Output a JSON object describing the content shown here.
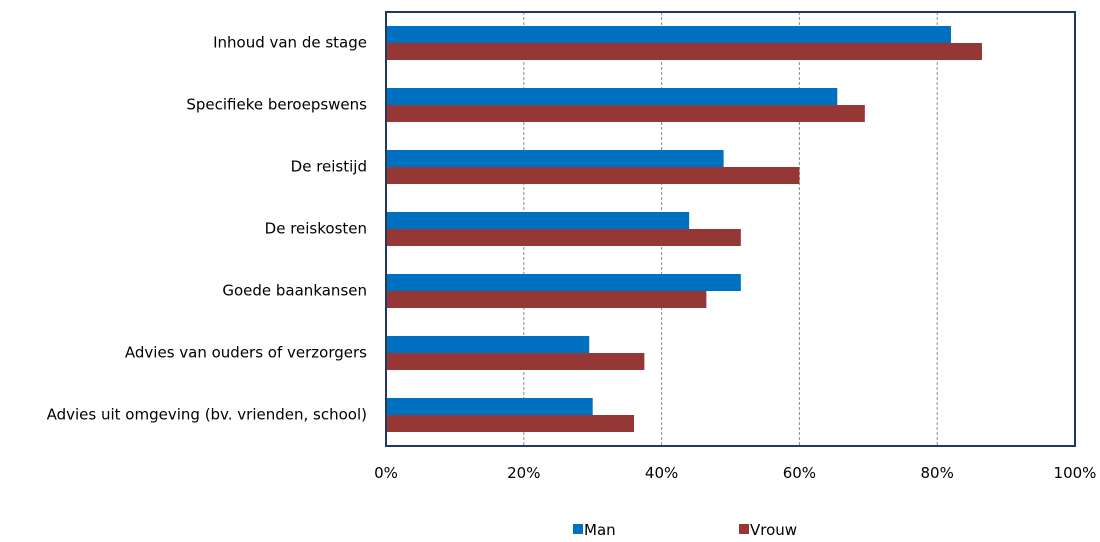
{
  "chart_data": {
    "type": "bar",
    "orientation": "horizontal",
    "categories": [
      "Inhoud van de stage",
      "Specifieke beroepswens",
      "De reistijd",
      "De reiskosten",
      "Goede baankansen",
      "Advies van ouders of verzorgers",
      "Advies uit omgeving (bv. vrienden, school)"
    ],
    "series": [
      {
        "name": "Man",
        "color": "#0070c0",
        "values": [
          82,
          65.5,
          49,
          44,
          51.5,
          29.5,
          30
        ]
      },
      {
        "name": "Vrouw",
        "color": "#953735",
        "values": [
          86.5,
          69.5,
          60,
          51.5,
          46.5,
          37.5,
          36
        ]
      }
    ],
    "xlim": [
      0,
      100
    ],
    "xticks": [
      "0%",
      "20%",
      "40%",
      "60%",
      "80%",
      "100%"
    ],
    "grid": "vertical dashed",
    "legend_position": "bottom-center"
  }
}
